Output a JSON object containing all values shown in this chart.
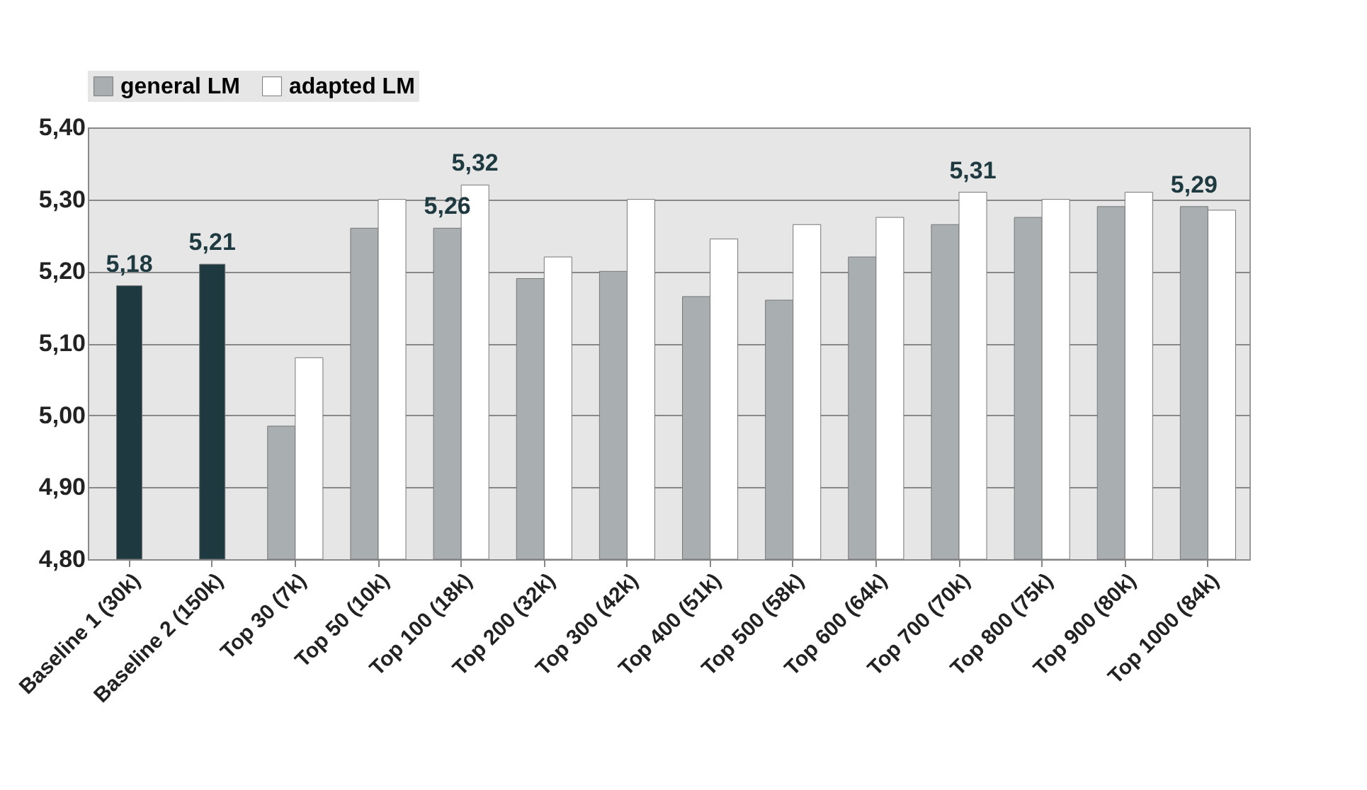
{
  "chart_data": {
    "type": "bar",
    "categories": [
      "Baseline 1 (30k)",
      "Baseline 2 (150k)",
      "Top 30 (7k)",
      "Top 50 (10k)",
      "Top 100 (18k)",
      "Top 200 (32k)",
      "Top 300 (42k)",
      "Top 400 (51k)",
      "Top 500 (58k)",
      "Top 600 (64k)",
      "Top 700 (70k)",
      "Top 800 (75k)",
      "Top 900 (80k)",
      "Top 1000 (84k)"
    ],
    "series": [
      {
        "color": "#1e3a40",
        "values": [
          5.18,
          5.21,
          null,
          null,
          null,
          null,
          null,
          null,
          null,
          null,
          null,
          null,
          null,
          null
        ],
        "value_labels": [
          "5,18",
          "5,21",
          null,
          null,
          null,
          null,
          null,
          null,
          null,
          null,
          null,
          null,
          null,
          null
        ]
      },
      {
        "name": "general  LM",
        "color": "#a9aeb0",
        "values": [
          null,
          null,
          4.985,
          5.26,
          5.26,
          5.19,
          5.2,
          5.165,
          5.16,
          5.22,
          5.265,
          5.275,
          5.29,
          5.29
        ],
        "value_labels": [
          null,
          null,
          null,
          null,
          "5,26",
          null,
          null,
          null,
          null,
          null,
          null,
          null,
          null,
          "5,29"
        ]
      },
      {
        "name": "adapted LM",
        "color": "#ffffff",
        "values": [
          null,
          null,
          5.08,
          5.3,
          5.32,
          5.22,
          5.3,
          5.245,
          5.265,
          5.275,
          5.31,
          5.3,
          5.31,
          5.285
        ],
        "value_labels": [
          null,
          null,
          null,
          null,
          "5,32",
          null,
          null,
          null,
          null,
          null,
          "5,31",
          null,
          null,
          null
        ]
      }
    ],
    "ylim": [
      4.8,
      5.4
    ],
    "yticks": [
      {
        "value": 4.8,
        "label": "4,80"
      },
      {
        "value": 4.9,
        "label": "4,90"
      },
      {
        "value": 5.0,
        "label": "5,00"
      },
      {
        "value": 5.1,
        "label": "5,10"
      },
      {
        "value": 5.2,
        "label": "5,20"
      },
      {
        "value": 5.3,
        "label": "5,30"
      },
      {
        "value": 5.4,
        "label": "5,40"
      }
    ],
    "grid": "y",
    "legend": "top left"
  }
}
